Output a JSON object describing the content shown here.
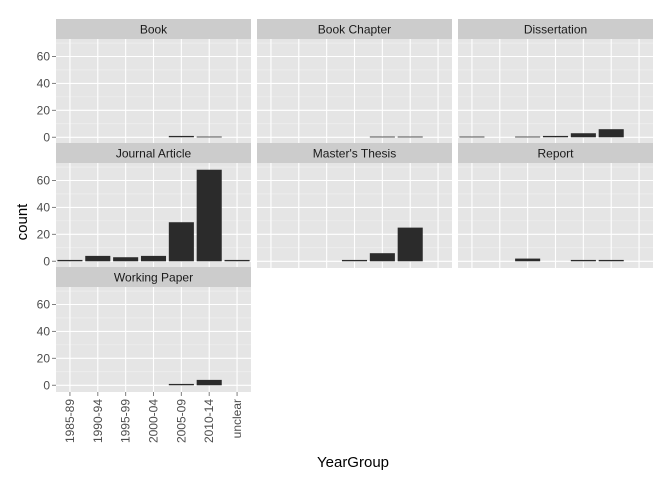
{
  "chart_data": {
    "type": "bar",
    "xlabel": "YearGroup",
    "ylabel": "count",
    "categories": [
      "1985-89",
      "1990-94",
      "1995-99",
      "2000-04",
      "2005-09",
      "2010-14",
      "unclear"
    ],
    "ylim": [
      -5,
      73
    ],
    "yticks": [
      0,
      20,
      40,
      60
    ],
    "grid": true,
    "facets": [
      {
        "name": "Book",
        "values": [
          0,
          0,
          0,
          0,
          1,
          0.5,
          0
        ]
      },
      {
        "name": "Book Chapter",
        "values": [
          0,
          0,
          0,
          0,
          0.5,
          0.5,
          0
        ]
      },
      {
        "name": "Dissertation",
        "values": [
          0.5,
          0,
          0.5,
          1,
          3,
          6,
          0
        ]
      },
      {
        "name": "Journal Article",
        "values": [
          1,
          4,
          3,
          4,
          29,
          68,
          1
        ]
      },
      {
        "name": "Master's Thesis",
        "values": [
          0,
          0,
          0,
          1,
          6,
          25,
          0
        ]
      },
      {
        "name": "Report",
        "values": [
          0,
          0,
          2,
          0,
          1,
          1,
          0
        ]
      },
      {
        "name": "Working Paper",
        "values": [
          0,
          0,
          0,
          0,
          1,
          4,
          0
        ]
      }
    ]
  },
  "colors": {
    "panel_bg": "#e5e5e5",
    "strip_bg": "#cccccc",
    "grid_major": "#ffffff",
    "grid_minor": "#f2f2f2",
    "bar": "#2b2b2b"
  }
}
